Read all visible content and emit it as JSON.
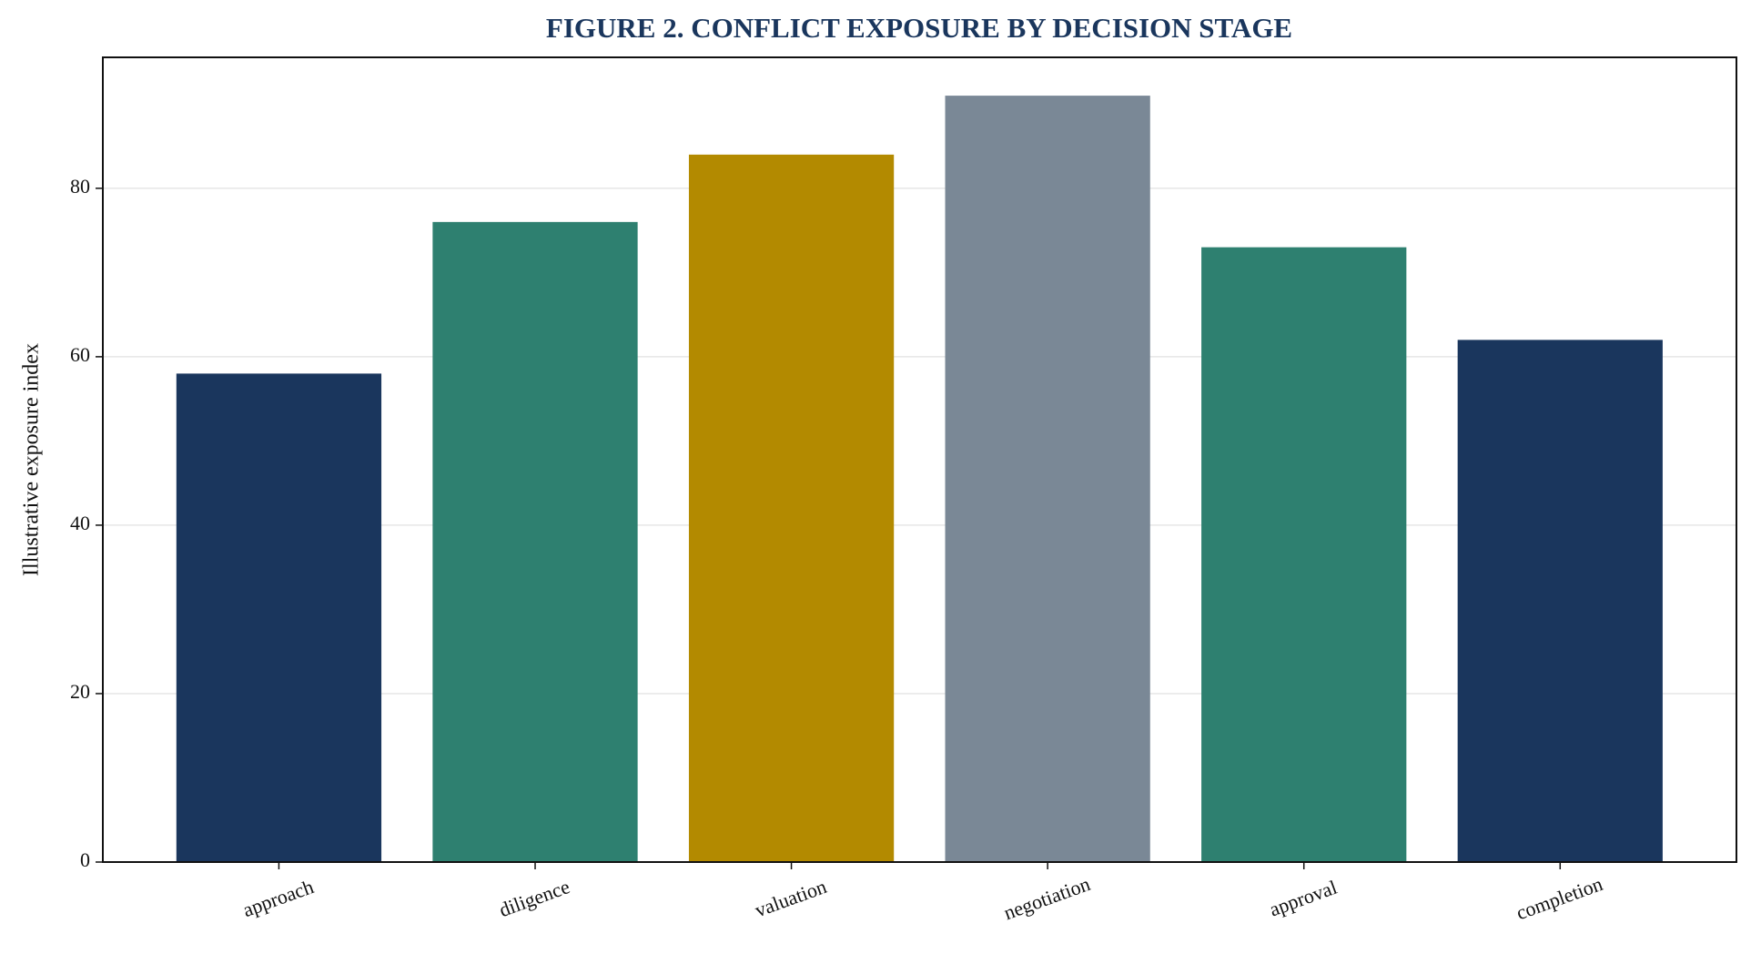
{
  "chart_data": {
    "type": "bar",
    "title": "FIGURE 2. CONFLICT EXPOSURE BY DECISION STAGE",
    "y_label": "Illustrative exposure index",
    "categories": [
      "approach",
      "diligence",
      "valuation",
      "negotiation",
      "approval",
      "completion"
    ],
    "values": [
      58,
      76,
      84,
      91,
      73,
      62
    ],
    "colors": [
      "#1a365d",
      "#2e8070",
      "#b38a00",
      "#7a8896",
      "#2e8070",
      "#1a365d"
    ],
    "ylim": [
      0,
      95.55
    ],
    "yticks": [
      0,
      20,
      40,
      60,
      80
    ],
    "grid": true
  }
}
